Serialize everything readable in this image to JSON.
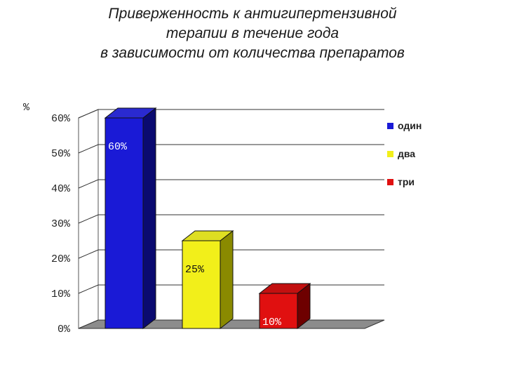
{
  "title_lines": [
    "Приверженность к антигипертензивной",
    "терапии в течение года",
    "в зависимости от количества препаратов"
  ],
  "chart_data": {
    "type": "bar",
    "title": "Приверженность к антигипертензивной терапии в течение года в зависимости от количества препаратов",
    "ylabel": "%",
    "xlabel": "",
    "ylim": [
      0,
      60
    ],
    "yticks": [
      "0%",
      "10%",
      "20%",
      "30%",
      "40%",
      "50%",
      "60%"
    ],
    "grid": true,
    "legend_position": "right",
    "categories": [
      "один",
      "два",
      "три"
    ],
    "values": [
      60,
      25,
      10
    ],
    "data_labels": [
      "60%",
      "25%",
      "10%"
    ],
    "colors": [
      "#1a1ad6",
      "#f2ef1a",
      "#e01010"
    ],
    "dark_colors": [
      "#0a0a70",
      "#8a8a00",
      "#6e0000"
    ],
    "top_colors": [
      "#2a2ad0",
      "#dede22",
      "#c21010"
    ]
  }
}
